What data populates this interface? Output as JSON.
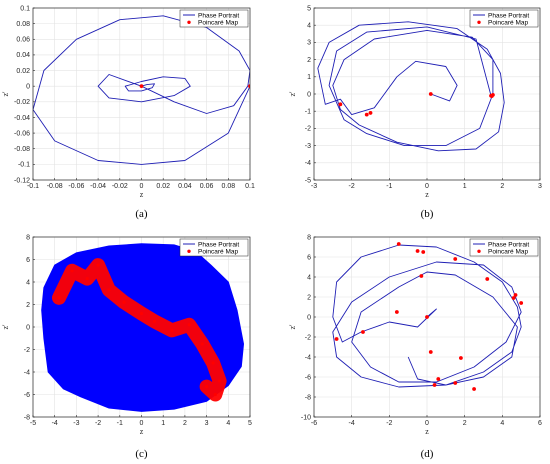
{
  "colors": {
    "portrait": "#1f1fb4",
    "poincare": "#ff0000",
    "fill": "#0000ff",
    "grid": "#e3e3e3",
    "axis": "#262626"
  },
  "chart_data": [
    {
      "type": "line",
      "panel": "a",
      "caption": "(a)",
      "xlabel": "z",
      "ylabel": "z'",
      "xlim": [
        -0.1,
        0.1
      ],
      "ylim": [
        -0.12,
        0.1
      ],
      "xticks": [
        -0.1,
        -0.08,
        -0.06,
        -0.04,
        -0.02,
        0,
        0.02,
        0.04,
        0.06,
        0.08,
        0.1
      ],
      "yticks": [
        -0.12,
        -0.1,
        -0.08,
        -0.06,
        -0.04,
        -0.02,
        0,
        0.02,
        0.04,
        0.06,
        0.08,
        0.1
      ],
      "xtick_labels": [
        "-0.1",
        "-0.08",
        "-0.06",
        "-0.04",
        "-0.02",
        "0",
        "0.02",
        "0.04",
        "0.06",
        "0.08",
        "0.1"
      ],
      "ytick_labels": [
        "-0.12",
        "-0.1",
        "-0.08",
        "-0.06",
        "-0.04",
        "-0.02",
        "0",
        "0.02",
        "0.04",
        "0.06",
        "0.08",
        "0.1"
      ],
      "legend": [
        "Phase Portrait",
        "Poincaré Map"
      ],
      "grid": true,
      "series": [
        {
          "name": "Phase Portrait",
          "kind": "line",
          "x": [
            0.1,
            0.08,
            0.04,
            0.0,
            -0.04,
            -0.08,
            -0.1,
            -0.09,
            -0.06,
            -0.02,
            0.02,
            0.06,
            0.09,
            0.1,
            0.098,
            0.085,
            0.06,
            0.03,
            0.0,
            -0.03,
            -0.04,
            -0.03,
            0.0,
            0.03,
            0.045,
            0.04,
            0.02,
            0.0,
            -0.015,
            -0.012,
            0.0,
            0.01,
            0.012,
            0.005,
            0.0
          ],
          "y": [
            0.0,
            -0.06,
            -0.095,
            -0.1,
            -0.095,
            -0.07,
            -0.03,
            0.02,
            0.06,
            0.085,
            0.09,
            0.075,
            0.045,
            0.02,
            0.0,
            -0.025,
            -0.035,
            -0.02,
            0.0,
            0.015,
            0.0,
            -0.015,
            -0.02,
            -0.012,
            0.0,
            0.01,
            0.012,
            0.006,
            0.0,
            -0.006,
            -0.006,
            -0.002,
            0.003,
            0.002,
            0.0
          ]
        },
        {
          "name": "Poincaré Map",
          "kind": "points",
          "x": [
            0.1,
            0.0
          ],
          "y": [
            0.0,
            0.0
          ]
        }
      ]
    },
    {
      "type": "line",
      "panel": "b",
      "caption": "(b)",
      "xlabel": "z",
      "ylabel": "z'",
      "xlim": [
        -3,
        3
      ],
      "ylim": [
        -5,
        5
      ],
      "xticks": [
        -3,
        -2,
        -1,
        0,
        1,
        2,
        3
      ],
      "yticks": [
        -5,
        -4,
        -3,
        -2,
        -1,
        0,
        1,
        2,
        3,
        4,
        5
      ],
      "xtick_labels": [
        "-3",
        "-2",
        "-1",
        "0",
        "1",
        "2",
        "3"
      ],
      "ytick_labels": [
        "-5",
        "-4",
        "-3",
        "-2",
        "-1",
        "0",
        "1",
        "2",
        "3",
        "4",
        "5"
      ],
      "legend": [
        "Phase Portrait",
        "Poincaré Map"
      ],
      "grid": true,
      "series": [
        {
          "name": "Phase Portrait",
          "kind": "line",
          "x": [
            0.1,
            0.6,
            0.8,
            0.5,
            -0.3,
            -0.8,
            -1.4,
            -2.0,
            -2.3,
            -2.7,
            -2.9,
            -2.6,
            -1.8,
            -0.5,
            0.8,
            1.6,
            1.95,
            2.05,
            1.9,
            1.3,
            0.3,
            -0.8,
            -1.8,
            -2.3,
            -2.5,
            -2.2,
            -1.4,
            0.0,
            1.2,
            1.75,
            1.75,
            1.4,
            0.5,
            -0.6,
            -1.6,
            -2.2,
            -2.6,
            -2.4,
            -1.6,
            0.0,
            1.3,
            1.7
          ],
          "y": [
            0.0,
            -0.4,
            0.5,
            1.6,
            1.9,
            1.0,
            -0.8,
            -1.2,
            -0.3,
            -0.6,
            1.5,
            3.0,
            4.0,
            4.2,
            3.8,
            2.6,
            1.2,
            -0.5,
            -2.2,
            -3.2,
            -3.3,
            -2.8,
            -1.8,
            -0.9,
            0.5,
            2.0,
            3.2,
            3.7,
            3.3,
            2.0,
            0.0,
            -2.0,
            -3.0,
            -3.0,
            -2.3,
            -1.5,
            0.5,
            2.5,
            3.6,
            3.9,
            3.2,
            -0.1
          ]
        },
        {
          "name": "Poincaré Map",
          "kind": "points",
          "x": [
            0.1,
            -2.3,
            -1.6,
            -1.5,
            1.7,
            1.75,
            1.72
          ],
          "y": [
            0.0,
            -0.6,
            -1.2,
            -1.1,
            -0.1,
            -0.05,
            -0.12
          ]
        }
      ]
    },
    {
      "type": "scatter",
      "panel": "c",
      "caption": "(c)",
      "xlabel": "z",
      "ylabel": "z'",
      "xlim": [
        -5,
        5
      ],
      "ylim": [
        -8,
        8
      ],
      "xticks": [
        -5,
        -4,
        -3,
        -2,
        -1,
        0,
        1,
        2,
        3,
        4,
        5
      ],
      "yticks": [
        -8,
        -6,
        -4,
        -2,
        0,
        2,
        4,
        6,
        8
      ],
      "xtick_labels": [
        "-5",
        "-4",
        "-3",
        "-2",
        "-1",
        "0",
        "1",
        "2",
        "3",
        "4",
        "5"
      ],
      "ytick_labels": [
        "-8",
        "-6",
        "-4",
        "-2",
        "0",
        "2",
        "4",
        "6",
        "8"
      ],
      "legend": [
        "Phase Portrait",
        "Poincaré Map"
      ],
      "grid": true,
      "series": [
        {
          "name": "Phase Portrait",
          "kind": "filled-region",
          "x": [
            0.0,
            1.5,
            2.5,
            3.2,
            4.0,
            4.4,
            4.7,
            4.6,
            4.0,
            3.0,
            1.5,
            0.0,
            -1.5,
            -2.8,
            -3.6,
            -4.3,
            -4.5,
            -4.6,
            -4.5,
            -4.0,
            -3.0,
            -1.5
          ],
          "y": [
            7.4,
            7.3,
            6.7,
            5.5,
            4.0,
            1.5,
            -1.5,
            -3.5,
            -5.2,
            -6.6,
            -7.3,
            -7.5,
            -7.2,
            -6.2,
            -5.5,
            -4.0,
            -1.0,
            1.5,
            3.5,
            5.5,
            6.6,
            7.2
          ]
        },
        {
          "name": "Poincaré Map",
          "kind": "dense-points",
          "x": [
            -3.8,
            -3.2,
            -2.5,
            -2.0,
            -1.5,
            -0.8,
            0.0,
            0.6,
            1.4,
            2.2,
            2.8,
            3.3,
            3.6,
            3.4,
            3.0
          ],
          "y": [
            2.6,
            5.0,
            4.3,
            5.5,
            3.3,
            2.2,
            1.2,
            0.5,
            -0.3,
            0.2,
            -1.5,
            -3.2,
            -4.8,
            -6.0,
            -5.3
          ]
        }
      ]
    },
    {
      "type": "line",
      "panel": "d",
      "caption": "(d)",
      "xlabel": "z",
      "ylabel": "z'",
      "xlim": [
        -6,
        6
      ],
      "ylim": [
        -10,
        8
      ],
      "xticks": [
        -6,
        -4,
        -2,
        0,
        2,
        4,
        6
      ],
      "yticks": [
        -10,
        -8,
        -6,
        -4,
        -2,
        0,
        2,
        4,
        6,
        8
      ],
      "xtick_labels": [
        "-6",
        "-4",
        "-2",
        "0",
        "2",
        "4",
        "6"
      ],
      "ytick_labels": [
        "-10",
        "-8",
        "-6",
        "-4",
        "-2",
        "0",
        "2",
        "4",
        "6",
        "8"
      ],
      "legend": [
        "Phase Portrait",
        "Poincaré Map"
      ],
      "grid": true,
      "series": [
        {
          "name": "Phase Portrait",
          "kind": "line",
          "x": [
            0.0,
            0.5,
            -0.5,
            -2.0,
            -3.5,
            -4.5,
            -5.0,
            -4.8,
            -3.5,
            -1.5,
            0.5,
            2.5,
            4.0,
            4.8,
            5.0,
            4.5,
            3.0,
            1.0,
            -1.5,
            -3.5,
            -4.8,
            -5.0,
            -4.0,
            -2.0,
            0.5,
            3.0,
            4.5,
            5.0,
            4.2,
            2.5,
            0.5,
            -1.5,
            -3.0,
            -4.0,
            -3.5,
            -1.5,
            0.0,
            1.5,
            3.5,
            4.8,
            4.5,
            3.0,
            1.0,
            -0.5,
            -1.0
          ],
          "y": [
            0.0,
            0.8,
            -1.0,
            -0.5,
            -1.5,
            -2.5,
            0.0,
            3.5,
            6.0,
            7.2,
            7.0,
            5.5,
            3.5,
            1.0,
            -1.0,
            -3.5,
            -5.5,
            -6.8,
            -7.0,
            -6.0,
            -4.0,
            -1.5,
            1.5,
            4.0,
            5.5,
            5.2,
            3.0,
            0.5,
            -2.5,
            -5.0,
            -6.5,
            -6.5,
            -5.0,
            -2.5,
            0.5,
            3.0,
            4.5,
            4.2,
            2.0,
            -1.0,
            -4.0,
            -6.0,
            -6.8,
            -6.2,
            -4.0
          ]
        },
        {
          "name": "Poincaré Map",
          "kind": "points",
          "x": [
            0.0,
            -4.8,
            -3.4,
            -1.5,
            -0.2,
            -0.5,
            1.5,
            3.2,
            4.7,
            5.0,
            4.6,
            1.8,
            0.2,
            0.4,
            0.6,
            2.5,
            -0.3,
            -1.6,
            1.5
          ],
          "y": [
            0.0,
            -2.2,
            -1.5,
            7.3,
            6.5,
            6.6,
            5.8,
            3.8,
            2.2,
            1.4,
            1.9,
            -4.1,
            -3.5,
            -6.8,
            -6.2,
            -7.2,
            4.1,
            0.5,
            -6.6
          ]
        }
      ]
    }
  ]
}
